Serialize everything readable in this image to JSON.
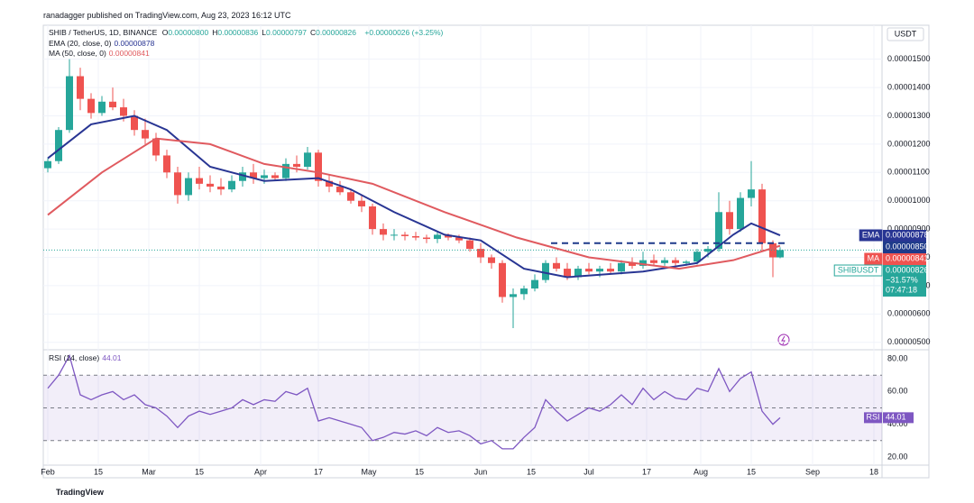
{
  "header": "ranadagger published on TradingView.com, Aug 23, 2023 16:12 UTC",
  "currency": "USDT",
  "footer": "TradingView",
  "chart_data": [
    {
      "type": "candlestick",
      "title": "SHIB / TetherUS, 1D, BINANCE",
      "ohlc": [
        {
          "key": "O",
          "value": "0.00000800"
        },
        {
          "key": "H",
          "value": "0.00000836"
        },
        {
          "key": "L",
          "value": "0.00000797"
        },
        {
          "key": "C",
          "value": "0.00000826"
        }
      ],
      "change": "+0.00000026 (+3.25%)",
      "up_color": "#26a69a",
      "down_color": "#ef5350",
      "xlim": [
        -1.25,
        231.25
      ],
      "xticks": [
        {
          "value": 0,
          "label": "Feb"
        },
        {
          "value": 14,
          "label": "15"
        },
        {
          "value": 28,
          "label": "Mar"
        },
        {
          "value": 42,
          "label": "15"
        },
        {
          "value": 59,
          "label": "Apr"
        },
        {
          "value": 75,
          "label": "17"
        },
        {
          "value": 89,
          "label": "May"
        },
        {
          "value": 103,
          "label": "15"
        },
        {
          "value": 120,
          "label": "Jun"
        },
        {
          "value": 134,
          "label": "15"
        },
        {
          "value": 150,
          "label": "Jul"
        },
        {
          "value": 166,
          "label": "17"
        },
        {
          "value": 181,
          "label": "Aug"
        },
        {
          "value": 195,
          "label": "15"
        },
        {
          "value": 212,
          "label": "Sep"
        },
        {
          "value": 229,
          "label": "18"
        }
      ],
      "ylim": [
        4.8e-06,
        1.62e-05
      ],
      "yticks": [
        {
          "value": 5e-06,
          "label": "0.00000500"
        },
        {
          "value": 6e-06,
          "label": "0.00000600"
        },
        {
          "value": 7e-06,
          "label": "0.00000700"
        },
        {
          "value": 8e-06,
          "label": "0.00000800"
        },
        {
          "value": 9e-06,
          "label": "0.00000900"
        },
        {
          "value": 1e-05,
          "label": "0.00001000"
        },
        {
          "value": 1.1e-05,
          "label": "0.00001100"
        },
        {
          "value": 1.2e-05,
          "label": "0.00001200"
        },
        {
          "value": 1.3e-05,
          "label": "0.00001300"
        },
        {
          "value": 1.4e-05,
          "label": "0.00001400"
        },
        {
          "value": 1.5e-05,
          "label": "0.00001500"
        }
      ],
      "x": [
        0,
        3,
        6,
        9,
        12,
        15,
        18,
        21,
        24,
        27,
        30,
        33,
        36,
        39,
        42,
        45,
        48,
        51,
        54,
        57,
        60,
        63,
        66,
        69,
        72,
        75,
        78,
        81,
        84,
        87,
        90,
        93,
        96,
        99,
        102,
        105,
        108,
        111,
        114,
        117,
        120,
        123,
        126,
        129,
        132,
        135,
        138,
        141,
        144,
        147,
        150,
        153,
        156,
        159,
        162,
        165,
        168,
        171,
        174,
        177,
        180,
        183,
        186,
        189,
        192,
        195,
        198,
        201,
        203
      ],
      "open": [
        1.115e-05,
        1.14e-05,
        1.25e-05,
        1.44e-05,
        1.36e-05,
        1.31e-05,
        1.35e-05,
        1.33e-05,
        1.3e-05,
        1.25e-05,
        1.22e-05,
        1.16e-05,
        1.1e-05,
        1.02e-05,
        1.08e-05,
        1.06e-05,
        1.05e-05,
        1.04e-05,
        1.07e-05,
        1.1e-05,
        1.08e-05,
        1.09e-05,
        1.08e-05,
        1.13e-05,
        1.12e-05,
        1.17e-05,
        1.07e-05,
        1.05e-05,
        1.03e-05,
        1e-05,
        9.8e-06,
        9e-06,
        8.8e-06,
        8.8e-06,
        8.75e-06,
        8.7e-06,
        8.65e-06,
        8.8e-06,
        8.7e-06,
        8.6e-06,
        8.3e-06,
        8e-06,
        7.8e-06,
        6.6e-06,
        6.7e-06,
        6.9e-06,
        7.2e-06,
        7.8e-06,
        7.6e-06,
        7.3e-06,
        7.6e-06,
        7.5e-06,
        7.6e-06,
        7.5e-06,
        7.8e-06,
        7.7e-06,
        7.9e-06,
        7.8e-06,
        7.9e-06,
        7.8e-06,
        7.85e-06,
        8.2e-06,
        8.3e-06,
        9.6e-06,
        9e-06,
        1.01e-05,
        1.04e-05,
        8.5e-06,
        8e-06
      ],
      "high": [
        1.15e-05,
        1.26e-05,
        1.5e-05,
        1.47e-05,
        1.38e-05,
        1.37e-05,
        1.4e-05,
        1.36e-05,
        1.32e-05,
        1.29e-05,
        1.24e-05,
        1.18e-05,
        1.12e-05,
        1.1e-05,
        1.12e-05,
        1.09e-05,
        1.08e-05,
        1.09e-05,
        1.12e-05,
        1.13e-05,
        1.11e-05,
        1.1e-05,
        1.15e-05,
        1.16e-05,
        1.19e-05,
        1.18e-05,
        1.09e-05,
        1.07e-05,
        1.04e-05,
        1.02e-05,
        9.9e-06,
        9.2e-06,
        9e-06,
        8.9e-06,
        8.9e-06,
        8.8e-06,
        8.9e-06,
        8.85e-06,
        8.8e-06,
        8.7e-06,
        8.5e-06,
        8.1e-06,
        7.9e-06,
        6.9e-06,
        7e-06,
        7.4e-06,
        7.9e-06,
        8e-06,
        7.8e-06,
        7.7e-06,
        7.8e-06,
        7.7e-06,
        7.8e-06,
        7.9e-06,
        8e-06,
        8.2e-06,
        8.1e-06,
        8e-06,
        8e-06,
        7.9e-06,
        8.3e-06,
        8.4e-06,
        1.03e-05,
        1e-05,
        1.03e-05,
        1.14e-05,
        1.06e-05,
        8.6e-06,
        8.36e-06
      ],
      "low": [
        1.1e-05,
        1.13e-05,
        1.24e-05,
        1.32e-05,
        1.29e-05,
        1.3e-05,
        1.32e-05,
        1.28e-05,
        1.23e-05,
        1.2e-05,
        1.14e-05,
        1.08e-05,
        9.9e-06,
        1e-05,
        1.04e-05,
        1.03e-05,
        1.02e-05,
        1.03e-05,
        1.05e-05,
        1.06e-05,
        1.06e-05,
        1.07e-05,
        1.07e-05,
        1.1e-05,
        1.11e-05,
        1.05e-05,
        1.03e-05,
        1.02e-05,
        9.9e-06,
        9.6e-06,
        8.8e-06,
        8.6e-06,
        8.6e-06,
        8.6e-06,
        8.6e-06,
        8.5e-06,
        8.5e-06,
        8.6e-06,
        8.5e-06,
        8.2e-06,
        7.8e-06,
        7.6e-06,
        6.4e-06,
        5.5e-06,
        6.5e-06,
        6.8e-06,
        7.1e-06,
        7.5e-06,
        7.2e-06,
        7.2e-06,
        7.4e-06,
        7.3e-06,
        7.4e-06,
        7.4e-06,
        7.6e-06,
        7.6e-06,
        7.7e-06,
        7.7e-06,
        7.7e-06,
        7.7e-06,
        7.75e-06,
        8e-06,
        8.2e-06,
        8.8e-06,
        8.9e-06,
        9.8e-06,
        8.2e-06,
        7.3e-06,
        7.97e-06
      ],
      "close": [
        1.14e-05,
        1.25e-05,
        1.44e-05,
        1.36e-05,
        1.31e-05,
        1.35e-05,
        1.33e-05,
        1.3e-05,
        1.25e-05,
        1.22e-05,
        1.16e-05,
        1.1e-05,
        1.02e-05,
        1.08e-05,
        1.06e-05,
        1.05e-05,
        1.04e-05,
        1.07e-05,
        1.1e-05,
        1.08e-05,
        1.09e-05,
        1.08e-05,
        1.13e-05,
        1.12e-05,
        1.17e-05,
        1.07e-05,
        1.05e-05,
        1.03e-05,
        1e-05,
        9.8e-06,
        9e-06,
        8.8e-06,
        8.8e-06,
        8.75e-06,
        8.7e-06,
        8.65e-06,
        8.8e-06,
        8.7e-06,
        8.6e-06,
        8.3e-06,
        8e-06,
        7.8e-06,
        6.6e-06,
        6.7e-06,
        6.9e-06,
        7.2e-06,
        7.8e-06,
        7.6e-06,
        7.3e-06,
        7.6e-06,
        7.5e-06,
        7.6e-06,
        7.5e-06,
        7.8e-06,
        7.7e-06,
        7.9e-06,
        7.8e-06,
        7.9e-06,
        7.8e-06,
        7.85e-06,
        8.2e-06,
        8.3e-06,
        9.6e-06,
        9e-06,
        1.01e-05,
        1.04e-05,
        8.5e-06,
        8e-06,
        8.26e-06
      ],
      "lines": [
        {
          "name": "EMA",
          "legend": "EMA (20, close, 0)",
          "color": "#283593",
          "x": [
            0,
            12,
            24,
            33,
            45,
            60,
            75,
            84,
            96,
            110,
            120,
            132,
            144,
            165,
            180,
            190,
            195,
            203
          ],
          "values": [
            1.15e-05,
            1.27e-05,
            1.3e-05,
            1.25e-05,
            1.12e-05,
            1.07e-05,
            1.08e-05,
            1.04e-05,
            9.6e-06,
            8.8e-06,
            8.6e-06,
            7.6e-06,
            7.3e-06,
            7.5e-06,
            7.8e-06,
            8.8e-06,
            9.2e-06,
            8.78e-06
          ]
        },
        {
          "name": "MA",
          "legend": "MA (50, close, 0)",
          "color": "#e05a5f",
          "x": [
            0,
            15,
            30,
            45,
            60,
            75,
            90,
            110,
            130,
            150,
            175,
            190,
            203
          ],
          "values": [
            9.5e-06,
            1.1e-05,
            1.22e-05,
            1.2e-05,
            1.13e-05,
            1.1e-05,
            1.06e-05,
            9.6e-06,
            8.7e-06,
            8e-06,
            7.6e-06,
            7.9e-06,
            8.41e-06
          ]
        }
      ],
      "level": {
        "value": 8.5e-06,
        "color": "#1e3a8a"
      },
      "tags": [
        {
          "name": "EMA",
          "value": 8.78e-06,
          "label": "0.00000878",
          "color": "#283593"
        },
        {
          "value": 8.5e-06,
          "label": "0.00000850",
          "color": "#1e3a8a"
        },
        {
          "name": "MA",
          "value": 8.41e-06,
          "label": "0.00000841",
          "color": "#ef5350"
        },
        {
          "name": "SHIBUSDT",
          "value": 8.26e-06,
          "label": "0.00000826",
          "change": "−31.57%",
          "countdown": "07:47:18",
          "color": "#26a69a"
        }
      ]
    },
    {
      "type": "line",
      "title": "RSI (14, close)",
      "last": 44.01,
      "tag": "RSI",
      "color": "#7e57c2",
      "xlim": [
        -1.25,
        231.25
      ],
      "ylim": [
        15,
        85
      ],
      "yticks": [
        {
          "value": 20,
          "label": "20.00"
        },
        {
          "value": 40,
          "label": "40.00"
        },
        {
          "value": 60,
          "label": "60.00"
        },
        {
          "value": 80,
          "label": "80.00"
        }
      ],
      "bands": [
        70,
        50,
        30
      ],
      "x": [
        0,
        3,
        6,
        9,
        12,
        15,
        18,
        21,
        24,
        27,
        30,
        33,
        36,
        39,
        42,
        45,
        48,
        51,
        54,
        57,
        60,
        63,
        66,
        69,
        72,
        75,
        78,
        81,
        84,
        87,
        90,
        93,
        96,
        99,
        102,
        105,
        108,
        111,
        114,
        117,
        120,
        123,
        126,
        129,
        132,
        135,
        138,
        141,
        144,
        147,
        150,
        153,
        156,
        159,
        162,
        165,
        168,
        171,
        174,
        177,
        180,
        183,
        186,
        189,
        192,
        195,
        198,
        201,
        203
      ],
      "values": [
        62,
        70,
        82,
        58,
        55,
        58,
        60,
        55,
        58,
        52,
        50,
        45,
        38,
        45,
        48,
        46,
        48,
        50,
        55,
        52,
        55,
        54,
        60,
        58,
        62,
        42,
        44,
        42,
        40,
        38,
        30,
        32,
        35,
        34,
        36,
        33,
        38,
        35,
        36,
        33,
        28,
        30,
        25,
        25,
        32,
        38,
        55,
        48,
        42,
        46,
        50,
        48,
        52,
        58,
        52,
        62,
        55,
        60,
        56,
        55,
        62,
        60,
        74,
        60,
        68,
        72,
        48,
        40,
        44.01
      ]
    }
  ]
}
